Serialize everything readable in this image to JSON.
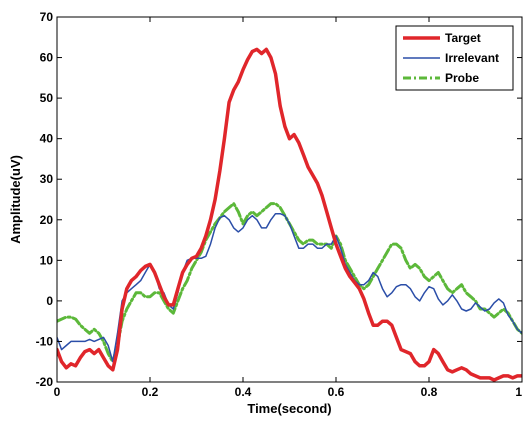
{
  "chart_data": {
    "type": "line",
    "xlabel": "Time(second)",
    "ylabel": "Amplitude(uV)",
    "xlim": [
      0,
      1
    ],
    "ylim": [
      -20,
      70
    ],
    "xticks": [
      0,
      0.2,
      0.4,
      0.6,
      0.8,
      1
    ],
    "xtick_labels": [
      "0",
      "0.2",
      "0.4",
      "0.6",
      "0.8",
      "1"
    ],
    "yticks": [
      -20,
      -10,
      0,
      10,
      20,
      30,
      40,
      50,
      60,
      70
    ],
    "ytick_labels": [
      "-20",
      "-10",
      "0",
      "10",
      "20",
      "30",
      "40",
      "50",
      "60",
      "70"
    ],
    "grid": false,
    "legend_position": "top-right",
    "series": [
      {
        "name": "Target",
        "color": "#e0262b",
        "style": "solid",
        "width": 3.5,
        "x": [
          0,
          0.01,
          0.02,
          0.03,
          0.04,
          0.05,
          0.06,
          0.07,
          0.08,
          0.09,
          0.1,
          0.11,
          0.12,
          0.13,
          0.14,
          0.15,
          0.16,
          0.17,
          0.18,
          0.19,
          0.2,
          0.21,
          0.22,
          0.23,
          0.24,
          0.25,
          0.26,
          0.27,
          0.28,
          0.29,
          0.3,
          0.31,
          0.32,
          0.33,
          0.34,
          0.35,
          0.36,
          0.37,
          0.38,
          0.39,
          0.4,
          0.41,
          0.42,
          0.43,
          0.44,
          0.45,
          0.46,
          0.47,
          0.48,
          0.49,
          0.5,
          0.51,
          0.52,
          0.53,
          0.54,
          0.55,
          0.56,
          0.57,
          0.58,
          0.59,
          0.6,
          0.61,
          0.62,
          0.63,
          0.64,
          0.65,
          0.66,
          0.67,
          0.68,
          0.69,
          0.7,
          0.71,
          0.72,
          0.73,
          0.74,
          0.75,
          0.76,
          0.77,
          0.78,
          0.79,
          0.8,
          0.81,
          0.82,
          0.83,
          0.84,
          0.85,
          0.86,
          0.87,
          0.88,
          0.89,
          0.9,
          0.91,
          0.92,
          0.93,
          0.94,
          0.95,
          0.96,
          0.97,
          0.98,
          0.99,
          1.0
        ],
        "y": [
          -12,
          -15,
          -16.5,
          -15.5,
          -16,
          -14,
          -12.5,
          -12,
          -13,
          -12,
          -14,
          -16,
          -17,
          -12,
          -2,
          3,
          5,
          6,
          7.5,
          8.5,
          9,
          7,
          4,
          1,
          -1,
          -1,
          3,
          7,
          9,
          10.5,
          11,
          13,
          16,
          20,
          25,
          32,
          40,
          49,
          52,
          54,
          57,
          59.5,
          61.5,
          62,
          61,
          62,
          60,
          56,
          48,
          43,
          40,
          41,
          39,
          36,
          33,
          31,
          29,
          26,
          22,
          18,
          14,
          11,
          8,
          6,
          4.5,
          3,
          0.5,
          -3,
          -6,
          -6,
          -5,
          -5,
          -6,
          -9,
          -12,
          -12.5,
          -13,
          -15,
          -16,
          -16,
          -15,
          -12,
          -13,
          -15,
          -17,
          -17.5,
          -17,
          -16.5,
          -17,
          -18,
          -18.5,
          -19,
          -19,
          -19,
          -19.5,
          -19,
          -18.5,
          -18.5,
          -19,
          -18.5,
          -18.5
        ]
      },
      {
        "name": "Irrelevant",
        "color": "#2b4ea8",
        "style": "solid",
        "width": 1.5,
        "x": [
          0,
          0.01,
          0.02,
          0.03,
          0.04,
          0.05,
          0.06,
          0.07,
          0.08,
          0.09,
          0.1,
          0.11,
          0.12,
          0.13,
          0.14,
          0.15,
          0.16,
          0.17,
          0.18,
          0.19,
          0.2,
          0.21,
          0.22,
          0.23,
          0.24,
          0.25,
          0.26,
          0.27,
          0.28,
          0.29,
          0.3,
          0.31,
          0.32,
          0.33,
          0.34,
          0.35,
          0.36,
          0.37,
          0.38,
          0.39,
          0.4,
          0.41,
          0.42,
          0.43,
          0.44,
          0.45,
          0.46,
          0.47,
          0.48,
          0.49,
          0.5,
          0.51,
          0.52,
          0.53,
          0.54,
          0.55,
          0.56,
          0.57,
          0.58,
          0.59,
          0.6,
          0.61,
          0.62,
          0.63,
          0.64,
          0.65,
          0.66,
          0.67,
          0.68,
          0.69,
          0.7,
          0.71,
          0.72,
          0.73,
          0.74,
          0.75,
          0.76,
          0.77,
          0.78,
          0.79,
          0.8,
          0.81,
          0.82,
          0.83,
          0.84,
          0.85,
          0.86,
          0.87,
          0.88,
          0.89,
          0.9,
          0.91,
          0.92,
          0.93,
          0.94,
          0.95,
          0.96,
          0.97,
          0.98,
          0.99,
          1.0
        ],
        "y": [
          -9,
          -12,
          -11,
          -10,
          -10,
          -10,
          -10,
          -9.5,
          -10,
          -9.5,
          -9,
          -11,
          -15,
          -8,
          0,
          2,
          3,
          4,
          5,
          7,
          9,
          7,
          3,
          2,
          -1,
          -2,
          2,
          7,
          10,
          10.5,
          10.5,
          10.5,
          11,
          14,
          18,
          20.5,
          21,
          20,
          18,
          17,
          18,
          20,
          21,
          20,
          18,
          18,
          20,
          21.5,
          21.5,
          21,
          19,
          16,
          13,
          13,
          14,
          14,
          13,
          13,
          14,
          14,
          16,
          13,
          9,
          7,
          5,
          4,
          4,
          5,
          7,
          6,
          3,
          1,
          2,
          3.5,
          4,
          4,
          3,
          1,
          0,
          2,
          3.5,
          3,
          0.5,
          -1,
          0,
          1.5,
          0,
          -2,
          -2.5,
          -2,
          -0.5,
          -1.5,
          -2.5,
          -2,
          -0.5,
          0.5,
          -0.5,
          -3.5,
          -5,
          -7,
          -8
        ]
      },
      {
        "name": "Probe",
        "color": "#5cb83a",
        "style": "dashdot",
        "width": 3,
        "x": [
          0,
          0.01,
          0.02,
          0.03,
          0.04,
          0.05,
          0.06,
          0.07,
          0.08,
          0.09,
          0.1,
          0.11,
          0.12,
          0.13,
          0.14,
          0.15,
          0.16,
          0.17,
          0.18,
          0.19,
          0.2,
          0.21,
          0.22,
          0.23,
          0.24,
          0.25,
          0.26,
          0.27,
          0.28,
          0.29,
          0.3,
          0.31,
          0.32,
          0.33,
          0.34,
          0.35,
          0.36,
          0.37,
          0.38,
          0.39,
          0.4,
          0.41,
          0.42,
          0.43,
          0.44,
          0.45,
          0.46,
          0.47,
          0.48,
          0.49,
          0.5,
          0.51,
          0.52,
          0.53,
          0.54,
          0.55,
          0.56,
          0.57,
          0.58,
          0.59,
          0.6,
          0.61,
          0.62,
          0.63,
          0.64,
          0.65,
          0.66,
          0.67,
          0.68,
          0.69,
          0.7,
          0.71,
          0.72,
          0.73,
          0.74,
          0.75,
          0.76,
          0.77,
          0.78,
          0.79,
          0.8,
          0.81,
          0.82,
          0.83,
          0.84,
          0.85,
          0.86,
          0.87,
          0.88,
          0.89,
          0.9,
          0.91,
          0.92,
          0.93,
          0.94,
          0.95,
          0.96,
          0.97,
          0.98,
          0.99,
          1.0
        ],
        "y": [
          -5,
          -4.5,
          -4,
          -4,
          -4.5,
          -6,
          -7,
          -8,
          -7,
          -8,
          -10,
          -13,
          -15,
          -11,
          -5,
          -2,
          0,
          2,
          2,
          1,
          1,
          2,
          2,
          0,
          -2,
          -3,
          0,
          3,
          5,
          8,
          10,
          12,
          15,
          17,
          19,
          20.5,
          22,
          23,
          24,
          22,
          19,
          21,
          22,
          21,
          22,
          23,
          24,
          24,
          23,
          21,
          19,
          17,
          15,
          14,
          15,
          15,
          14,
          14,
          14,
          13,
          16,
          14,
          10,
          8,
          6,
          4,
          3,
          4,
          6,
          8,
          10,
          12,
          14,
          14,
          13,
          10,
          8,
          9,
          8,
          6,
          5,
          6,
          7,
          5,
          3,
          2,
          3,
          4,
          2,
          1,
          0,
          -2,
          -2,
          -3,
          -4,
          -3,
          -2,
          -3,
          -5,
          -7,
          -8
        ]
      }
    ]
  }
}
